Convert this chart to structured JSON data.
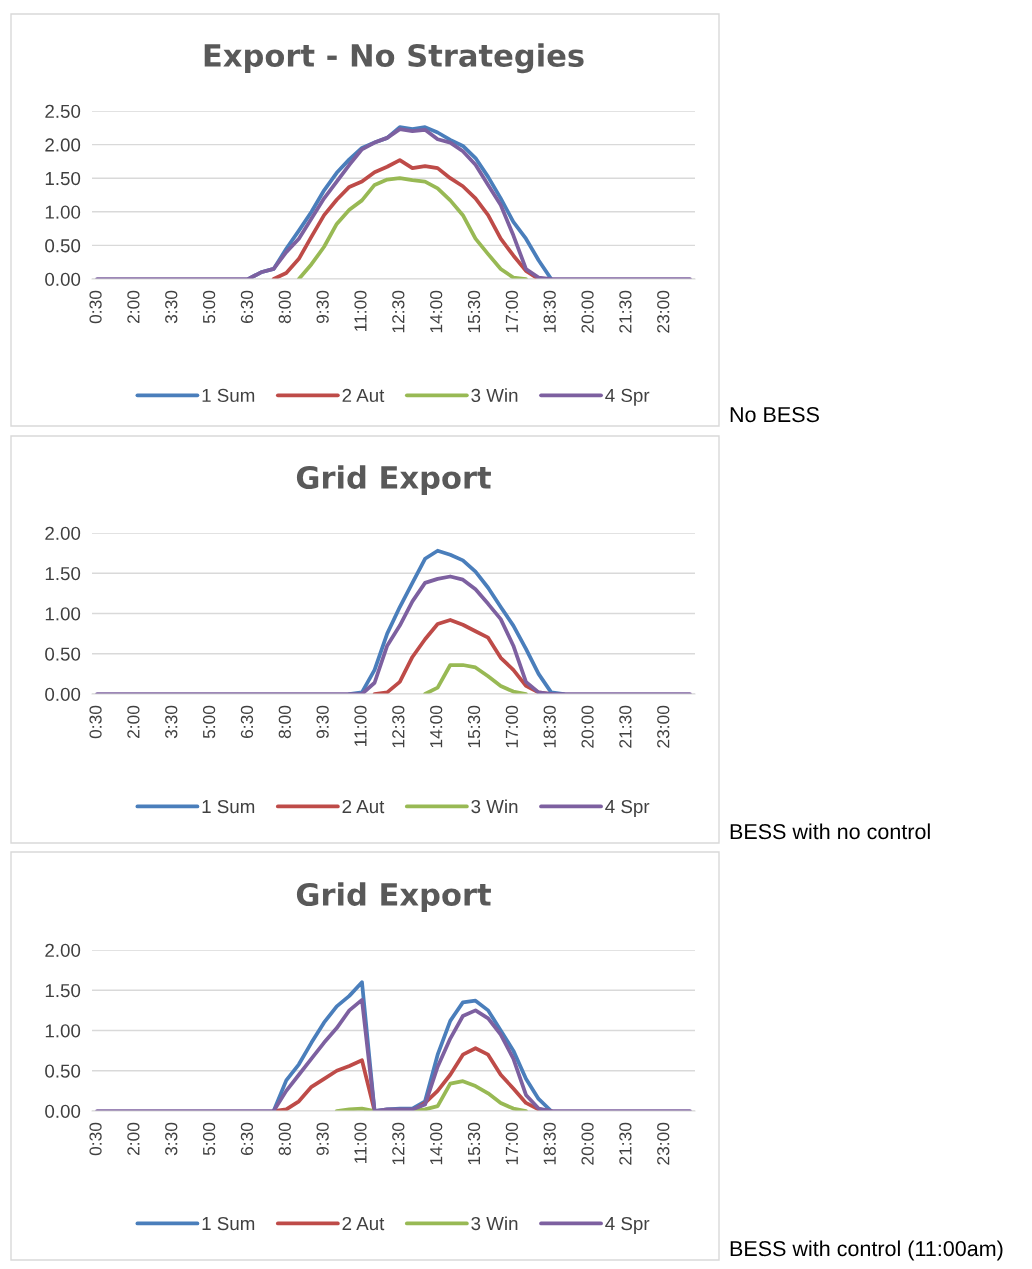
{
  "chart_data": [
    {
      "type": "line",
      "title": "Export - No Strategies",
      "categories": [
        "0:30",
        null,
        null,
        "2:00",
        null,
        null,
        "3:30",
        null,
        null,
        "5:00",
        null,
        null,
        "6:30",
        null,
        null,
        "8:00",
        null,
        null,
        "9:30",
        null,
        null,
        "11:00",
        null,
        null,
        "12:30",
        null,
        null,
        "14:00",
        null,
        null,
        "15:30",
        null,
        null,
        "17:00",
        null,
        null,
        "18:30",
        null,
        null,
        "20:00",
        null,
        null,
        "21:30",
        null,
        null,
        "23:00",
        null,
        null
      ],
      "ylim": [
        0,
        2.5
      ],
      "yticks": [
        {
          "value": 0,
          "label": "0.00"
        },
        {
          "value": 0.5,
          "label": "0.50"
        },
        {
          "value": 1,
          "label": "1.00"
        },
        {
          "value": 1.5,
          "label": "1.50"
        },
        {
          "value": 2,
          "label": "2.00"
        },
        {
          "value": 2.5,
          "label": "2.50"
        }
      ],
      "grid": "y",
      "legend": "bottom",
      "annotations": [
        "No BESS"
      ],
      "series": [
        {
          "name": "1 Sum",
          "color": "#4a7ebb",
          "values": [
            null,
            null,
            null,
            null,
            null,
            null,
            null,
            null,
            null,
            null,
            null,
            null,
            0,
            0.1,
            0.15,
            0.45,
            0.72,
            1.0,
            1.32,
            1.58,
            1.78,
            1.95,
            2.03,
            2.1,
            2.26,
            2.23,
            2.26,
            2.18,
            2.07,
            1.98,
            1.8,
            1.52,
            1.2,
            0.85,
            0.6,
            0.28,
            0,
            null,
            null,
            null,
            null,
            null,
            null,
            null,
            null,
            null,
            null,
            null
          ]
        },
        {
          "name": "2 Aut",
          "color": "#be4b48",
          "values": [
            null,
            null,
            null,
            null,
            null,
            null,
            null,
            null,
            null,
            null,
            null,
            null,
            null,
            null,
            0,
            0.09,
            0.3,
            0.63,
            0.95,
            1.18,
            1.37,
            1.45,
            1.59,
            1.67,
            1.77,
            1.65,
            1.68,
            1.65,
            1.5,
            1.38,
            1.2,
            0.95,
            0.6,
            0.35,
            0.12,
            0,
            null,
            null,
            null,
            null,
            null,
            null,
            null,
            null,
            null,
            null,
            null,
            null
          ]
        },
        {
          "name": "3 Win",
          "color": "#98b954",
          "values": [
            null,
            null,
            null,
            null,
            null,
            null,
            null,
            null,
            null,
            null,
            null,
            null,
            null,
            null,
            null,
            null,
            0,
            0.22,
            0.48,
            0.82,
            1.03,
            1.17,
            1.4,
            1.48,
            1.5,
            1.47,
            1.45,
            1.35,
            1.17,
            0.95,
            0.6,
            0.37,
            0.15,
            0.02,
            0,
            null,
            null,
            null,
            null,
            null,
            null,
            null,
            null,
            null,
            null,
            null,
            null,
            null
          ]
        },
        {
          "name": "4 Spr",
          "color": "#7d60a0",
          "values": [
            0,
            0,
            0,
            0,
            0,
            0,
            0,
            0,
            0,
            0,
            0,
            0,
            0,
            0.1,
            0.15,
            0.4,
            0.6,
            0.9,
            1.2,
            1.45,
            1.7,
            1.93,
            2.03,
            2.1,
            2.23,
            2.2,
            2.22,
            2.08,
            2.03,
            1.9,
            1.7,
            1.4,
            1.1,
            0.65,
            0.15,
            0.02,
            0,
            0,
            0,
            0,
            0,
            0,
            0,
            0,
            0,
            0,
            0,
            0
          ]
        }
      ]
    },
    {
      "type": "line",
      "title": "Grid Export",
      "categories": [
        "0:30",
        null,
        null,
        "2:00",
        null,
        null,
        "3:30",
        null,
        null,
        "5:00",
        null,
        null,
        "6:30",
        null,
        null,
        "8:00",
        null,
        null,
        "9:30",
        null,
        null,
        "11:00",
        null,
        null,
        "12:30",
        null,
        null,
        "14:00",
        null,
        null,
        "15:30",
        null,
        null,
        "17:00",
        null,
        null,
        "18:30",
        null,
        null,
        "20:00",
        null,
        null,
        "21:30",
        null,
        null,
        "23:00",
        null,
        null
      ],
      "ylim": [
        0,
        2
      ],
      "yticks": [
        {
          "value": 0,
          "label": "0.00"
        },
        {
          "value": 0.5,
          "label": "0.50"
        },
        {
          "value": 1,
          "label": "1.00"
        },
        {
          "value": 1.5,
          "label": "1.50"
        },
        {
          "value": 2,
          "label": "2.00"
        }
      ],
      "grid": "y",
      "legend": "bottom",
      "annotations": [
        "BESS with no control"
      ],
      "series": [
        {
          "name": "1 Sum",
          "color": "#4a7ebb",
          "values": [
            null,
            null,
            null,
            null,
            null,
            null,
            null,
            null,
            null,
            null,
            null,
            null,
            null,
            null,
            null,
            null,
            null,
            null,
            null,
            null,
            0,
            0.02,
            0.3,
            0.75,
            1.08,
            1.38,
            1.68,
            1.78,
            1.73,
            1.66,
            1.52,
            1.32,
            1.08,
            0.85,
            0.56,
            0.25,
            0.02,
            0,
            null,
            null,
            null,
            null,
            null,
            null,
            null,
            null,
            null,
            null
          ]
        },
        {
          "name": "2 Aut",
          "color": "#be4b48",
          "values": [
            null,
            null,
            null,
            null,
            null,
            null,
            null,
            null,
            null,
            null,
            null,
            null,
            null,
            null,
            null,
            null,
            null,
            null,
            null,
            null,
            null,
            null,
            0,
            0.02,
            0.15,
            0.46,
            0.68,
            0.87,
            0.92,
            0.86,
            0.78,
            0.7,
            0.45,
            0.3,
            0.1,
            0.02,
            0,
            null,
            null,
            null,
            null,
            null,
            null,
            null,
            null,
            null,
            null,
            null
          ]
        },
        {
          "name": "3 Win",
          "color": "#98b954",
          "values": [
            null,
            null,
            null,
            null,
            null,
            null,
            null,
            null,
            null,
            null,
            null,
            null,
            null,
            null,
            null,
            null,
            null,
            null,
            null,
            null,
            null,
            null,
            null,
            null,
            null,
            null,
            0,
            0.08,
            0.36,
            0.36,
            0.33,
            0.22,
            0.1,
            0.03,
            0,
            null,
            null,
            null,
            null,
            null,
            null,
            null,
            null,
            null,
            null,
            null,
            null,
            null
          ]
        },
        {
          "name": "4 Spr",
          "color": "#7d60a0",
          "values": [
            0,
            0,
            0,
            0,
            0,
            0,
            0,
            0,
            0,
            0,
            0,
            0,
            0,
            0,
            0,
            0,
            0,
            0,
            0,
            0,
            0,
            0,
            0.14,
            0.6,
            0.85,
            1.15,
            1.38,
            1.43,
            1.46,
            1.42,
            1.3,
            1.12,
            0.93,
            0.6,
            0.15,
            0.02,
            0,
            0,
            0,
            0,
            0,
            0,
            0,
            0,
            0,
            0,
            0,
            0
          ]
        }
      ]
    },
    {
      "type": "line",
      "title": "Grid Export",
      "categories": [
        "0:30",
        null,
        null,
        "2:00",
        null,
        null,
        "3:30",
        null,
        null,
        "5:00",
        null,
        null,
        "6:30",
        null,
        null,
        "8:00",
        null,
        null,
        "9:30",
        null,
        null,
        "11:00",
        null,
        null,
        "12:30",
        null,
        null,
        "14:00",
        null,
        null,
        "15:30",
        null,
        null,
        "17:00",
        null,
        null,
        "18:30",
        null,
        null,
        "20:00",
        null,
        null,
        "21:30",
        null,
        null,
        "23:00",
        null,
        null
      ],
      "ylim": [
        0,
        2
      ],
      "yticks": [
        {
          "value": 0,
          "label": "0.00"
        },
        {
          "value": 0.5,
          "label": "0.50"
        },
        {
          "value": 1,
          "label": "1.00"
        },
        {
          "value": 1.5,
          "label": "1.50"
        },
        {
          "value": 2,
          "label": "2.00"
        }
      ],
      "grid": "y",
      "legend": "bottom",
      "annotations": [
        "BESS with control (11:00am)"
      ],
      "series": [
        {
          "name": "1 Sum",
          "color": "#4a7ebb",
          "values": [
            null,
            null,
            null,
            null,
            null,
            null,
            null,
            null,
            null,
            null,
            null,
            null,
            null,
            null,
            0,
            0.38,
            0.58,
            0.85,
            1.1,
            1.3,
            1.43,
            1.6,
            0,
            0.02,
            0.03,
            0.03,
            0.12,
            0.7,
            1.12,
            1.35,
            1.37,
            1.25,
            1.0,
            0.75,
            0.4,
            0.15,
            0,
            null,
            null,
            null,
            null,
            null,
            null,
            null,
            null,
            null,
            null,
            null
          ]
        },
        {
          "name": "2 Aut",
          "color": "#be4b48",
          "values": [
            null,
            null,
            null,
            null,
            null,
            null,
            null,
            null,
            null,
            null,
            null,
            null,
            null,
            null,
            0,
            0.02,
            0.12,
            0.3,
            0.4,
            0.5,
            0.56,
            0.63,
            0,
            null,
            null,
            0,
            0.1,
            0.25,
            0.45,
            0.7,
            0.78,
            0.7,
            0.45,
            0.28,
            0.1,
            0.02,
            0,
            null,
            null,
            null,
            null,
            null,
            null,
            null,
            null,
            null,
            null,
            null
          ]
        },
        {
          "name": "3 Win",
          "color": "#98b954",
          "values": [
            null,
            null,
            null,
            null,
            null,
            null,
            null,
            null,
            null,
            null,
            null,
            null,
            null,
            null,
            null,
            null,
            null,
            null,
            null,
            0,
            0.02,
            0.03,
            0,
            null,
            null,
            0,
            0.02,
            0.06,
            0.34,
            0.37,
            0.31,
            0.22,
            0.1,
            0.03,
            0,
            null,
            null,
            null,
            null,
            null,
            null,
            null,
            null,
            null,
            null,
            null,
            null,
            null
          ]
        },
        {
          "name": "4 Spr",
          "color": "#7d60a0",
          "values": [
            0,
            0,
            0,
            0,
            0,
            0,
            0,
            0,
            0,
            0,
            0,
            0,
            0,
            0,
            0,
            0.25,
            0.45,
            0.65,
            0.85,
            1.03,
            1.25,
            1.38,
            0,
            0.02,
            0.02,
            0.02,
            0.08,
            0.55,
            0.9,
            1.18,
            1.25,
            1.15,
            0.95,
            0.65,
            0.2,
            0.03,
            0,
            0,
            0,
            0,
            0,
            0,
            0,
            0,
            0,
            0,
            0,
            0
          ]
        }
      ]
    }
  ]
}
